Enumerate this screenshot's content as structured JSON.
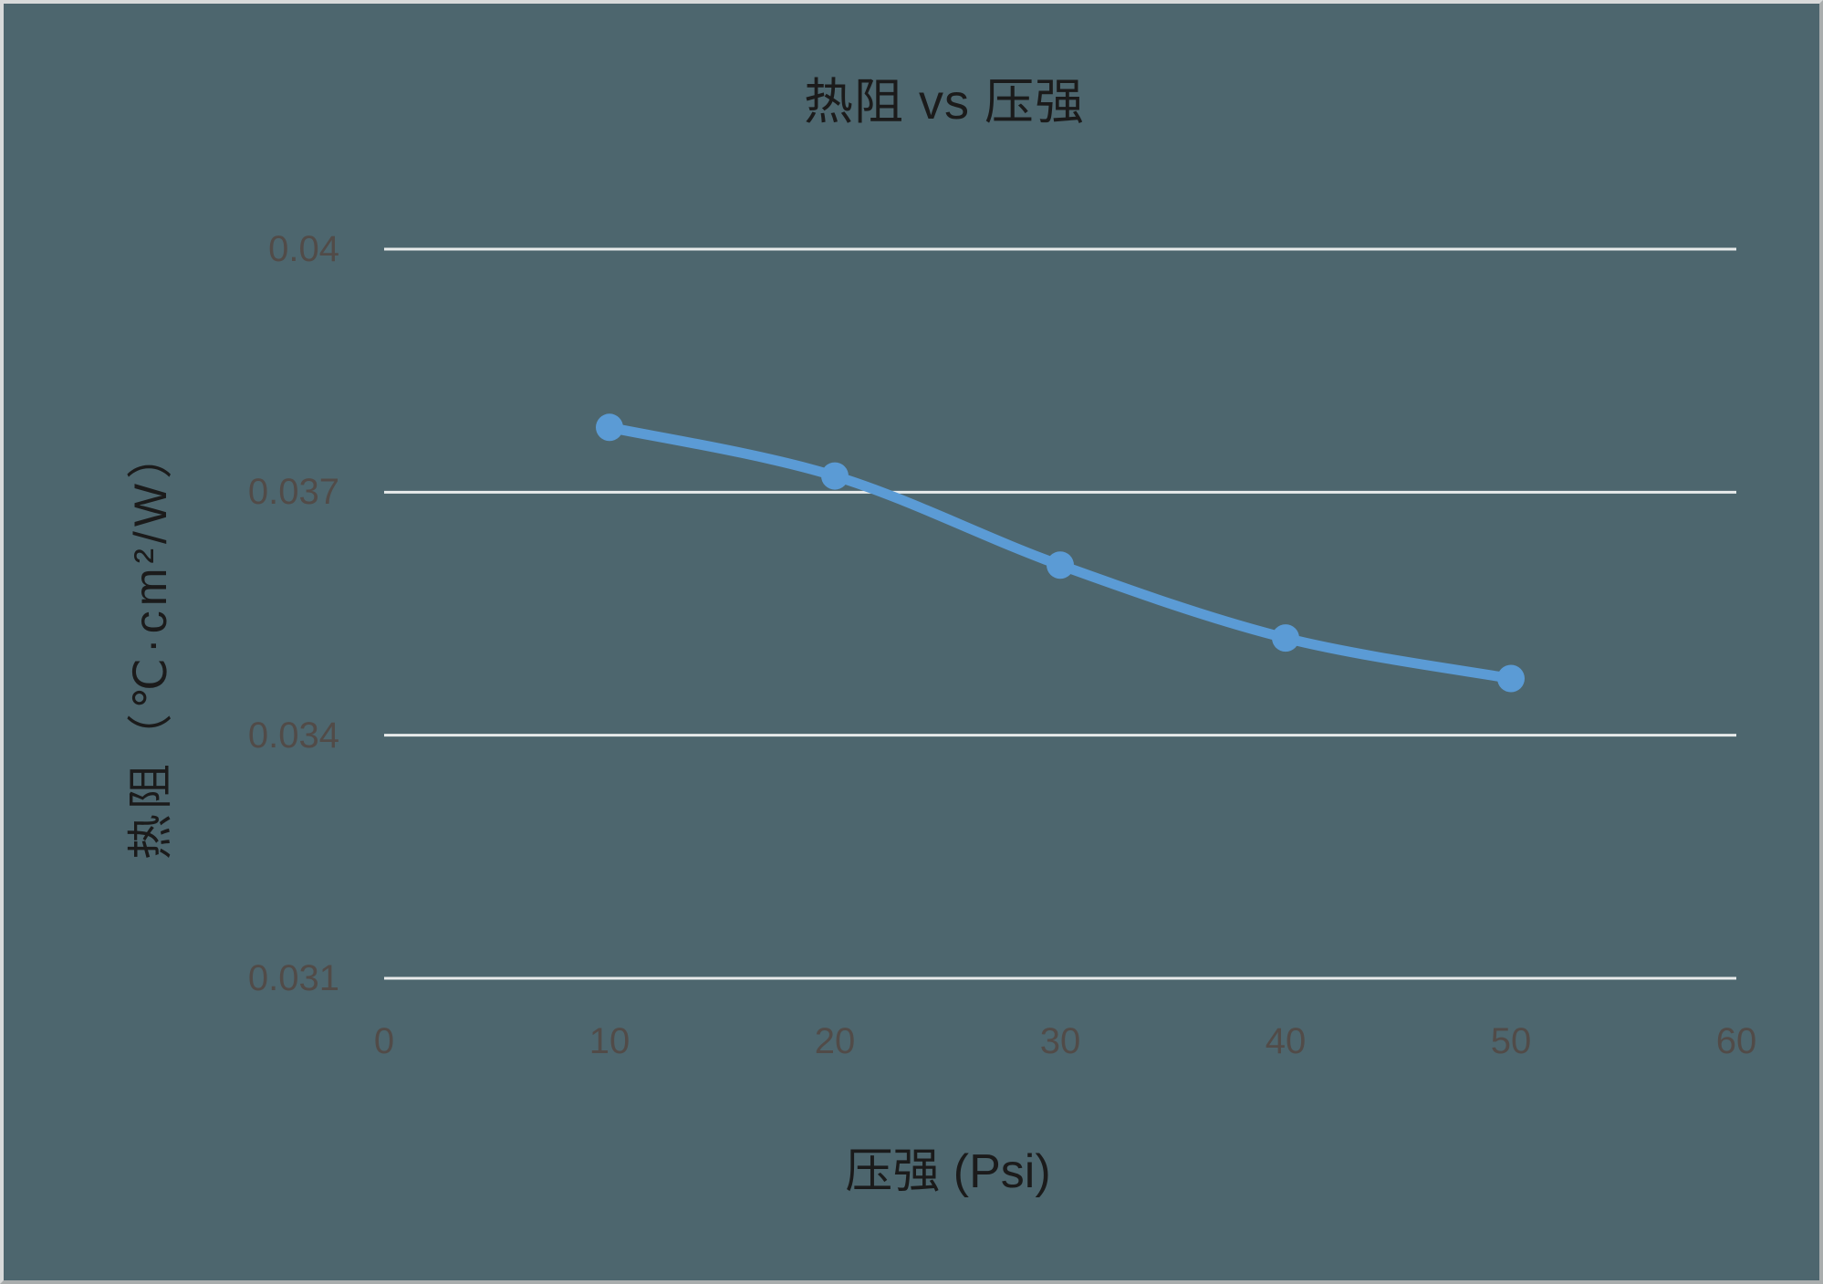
{
  "chart_data": {
    "type": "line",
    "title": "热阻 vs 压强",
    "xlabel": "压强 (Psi)",
    "ylabel": "热阻（℃·cm²/W）",
    "x": [
      10,
      20,
      30,
      40,
      50
    ],
    "values": [
      0.0378,
      0.0372,
      0.0361,
      0.0352,
      0.0347
    ],
    "xlim": [
      0,
      60
    ],
    "ylim": [
      0.031,
      0.04
    ],
    "x_ticks": [
      0,
      10,
      20,
      30,
      40,
      50,
      60
    ],
    "x_tick_labels": [
      "0",
      "10",
      "20",
      "30",
      "40",
      "50",
      "60"
    ],
    "y_ticks": [
      0.031,
      0.034,
      0.037,
      0.04
    ],
    "y_tick_labels": [
      "0.031",
      "0.034",
      "0.037",
      "0.04"
    ],
    "grid": "horizontal-only",
    "legend_position": "none",
    "smooth": true,
    "marker": "circle"
  },
  "colors": {
    "background": "#4d666e",
    "line": "#5b9bd5",
    "marker": "#5b9bd5",
    "gridline": "#e8ebeb",
    "tick_label": "#514b48",
    "title_text": "#1b1b1b"
  }
}
